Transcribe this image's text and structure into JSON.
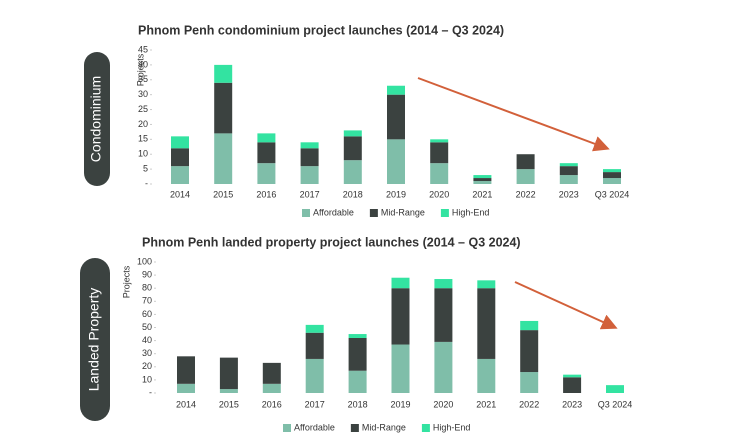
{
  "chart_data": [
    {
      "type": "bar",
      "stacked": true,
      "panel_label": "Condominium",
      "title": "Phnom Penh condominium project launches (2014 – Q3 2024)",
      "y_label": "Projects",
      "categories": [
        "2014",
        "2015",
        "2016",
        "2017",
        "2018",
        "2019",
        "2020",
        "2021",
        "2022",
        "2023",
        "Q3  2024"
      ],
      "series": [
        {
          "name": "Affordable",
          "color": "#7fbea9",
          "values": [
            6,
            17,
            7,
            6,
            8,
            15,
            7,
            1,
            5,
            3,
            2
          ]
        },
        {
          "name": "Mid-Range",
          "color": "#3b4240",
          "values": [
            6,
            17,
            7,
            6,
            8,
            15,
            7,
            1,
            5,
            3,
            2
          ]
        },
        {
          "name": "High-End",
          "color": "#33e3a1",
          "values": [
            4,
            6,
            3,
            2,
            2,
            3,
            1,
            1,
            0,
            1,
            1
          ]
        }
      ],
      "ylim": [
        0,
        45
      ],
      "yticks": [
        {
          "value": 0,
          "label": "-"
        },
        5,
        10,
        15,
        20,
        25,
        30,
        35,
        40,
        45
      ],
      "grid": false,
      "legend": "bottom"
    },
    {
      "type": "bar",
      "stacked": true,
      "panel_label": "Landed Property",
      "title": "Phnom Penh landed property project launches (2014 – Q3 2024)",
      "y_label": "Projects",
      "categories": [
        "2014",
        "2015",
        "2016",
        "2017",
        "2018",
        "2019",
        "2020",
        "2021",
        "2022",
        "2023",
        "Q3 2024"
      ],
      "series": [
        {
          "name": "Affordable",
          "color": "#7fbea9",
          "values": [
            7,
            3,
            7,
            26,
            17,
            37,
            39,
            26,
            16,
            0,
            0
          ]
        },
        {
          "name": "Mid-Range",
          "color": "#3b4240",
          "values": [
            21,
            24,
            16,
            20,
            25,
            43,
            41,
            54,
            32,
            12,
            0
          ]
        },
        {
          "name": "High-End",
          "color": "#33e3a1",
          "values": [
            0,
            0,
            0,
            6,
            3,
            8,
            7,
            6,
            7,
            2,
            6
          ]
        }
      ],
      "ylim": [
        0,
        100
      ],
      "yticks": [
        {
          "value": 0,
          "label": "-"
        },
        10,
        20,
        30,
        40,
        50,
        60,
        70,
        80,
        90,
        100
      ],
      "grid": false,
      "legend": "bottom"
    }
  ]
}
